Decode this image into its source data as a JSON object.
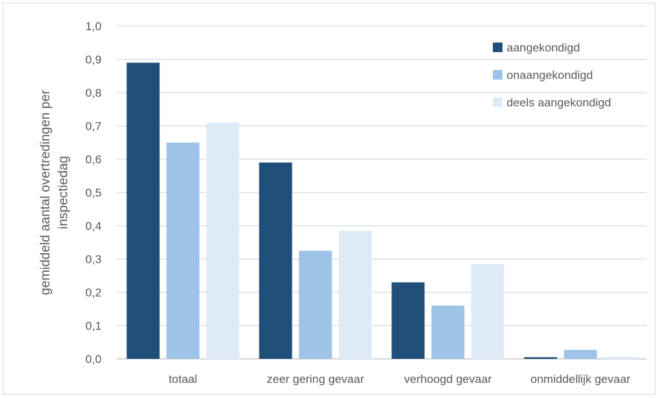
{
  "chart_data": {
    "type": "bar",
    "categories": [
      "totaal",
      "zeer gering gevaar",
      "verhoogd gevaar",
      "onmiddellijk gevaar"
    ],
    "series": [
      {
        "name": "aangekondigd",
        "color": "#1f4e79",
        "values": [
          0.89,
          0.59,
          0.23,
          0.005
        ]
      },
      {
        "name": "onaangekondigd",
        "color": "#9dc3e6",
        "values": [
          0.65,
          0.325,
          0.16,
          0.027
        ]
      },
      {
        "name": "deels aangekondigd",
        "color": "#deebf7",
        "values": [
          0.71,
          0.385,
          0.285,
          0.006
        ]
      }
    ],
    "ylabel_lines": [
      "gemiddeld aantal overtredingen per",
      "inspectiedag"
    ],
    "ylim": [
      0,
      1.0
    ],
    "yticks": [
      "0,0",
      "0,1",
      "0,2",
      "0,3",
      "0,4",
      "0,5",
      "0,6",
      "0,7",
      "0,8",
      "0,9",
      "1,0"
    ],
    "grid": true,
    "legend_position": "top-right"
  }
}
